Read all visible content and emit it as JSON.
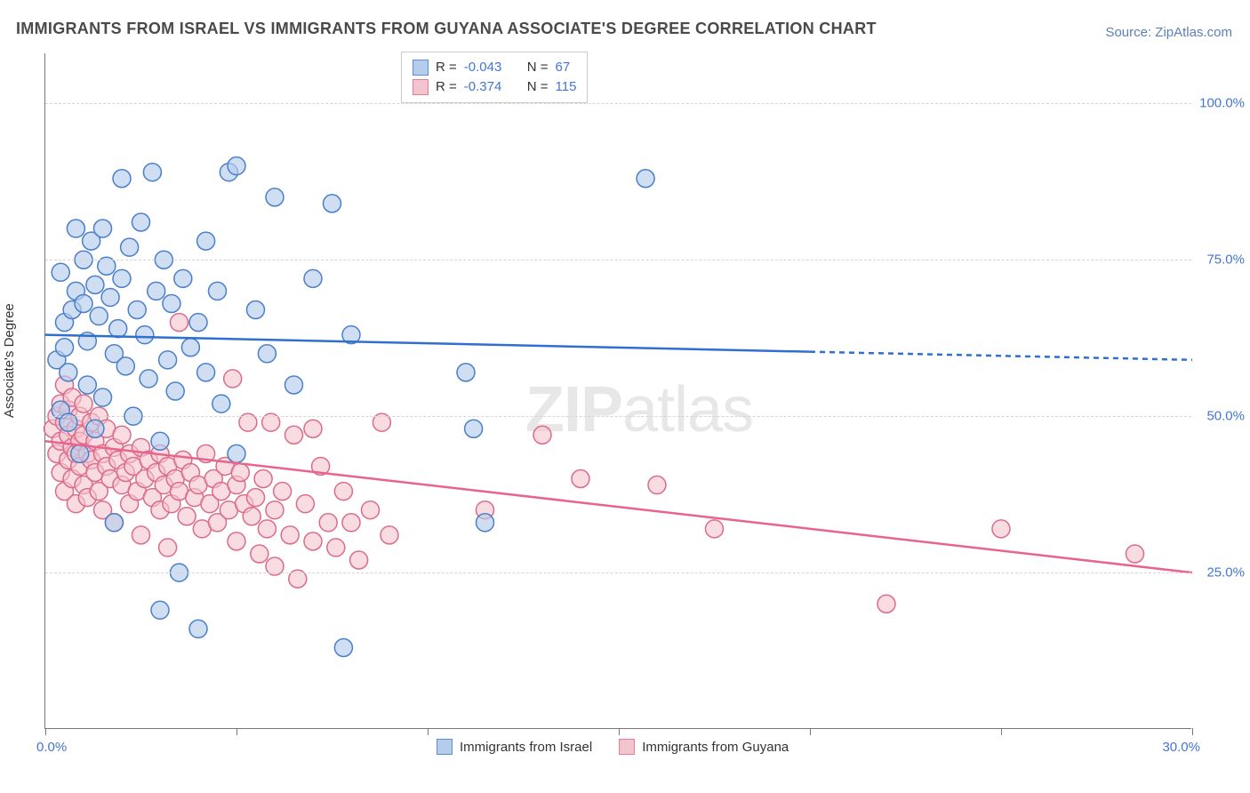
{
  "title": "IMMIGRANTS FROM ISRAEL VS IMMIGRANTS FROM GUYANA ASSOCIATE'S DEGREE CORRELATION CHART",
  "source_label": "Source: ZipAtlas.com",
  "ylabel": "Associate's Degree",
  "watermark_bold": "ZIP",
  "watermark_light": "atlas",
  "xlim": [
    0,
    30
  ],
  "ylim": [
    0,
    108
  ],
  "xlabel_min": "0.0%",
  "xlabel_max": "30.0%",
  "yticks": [
    {
      "value": 25,
      "label": "25.0%"
    },
    {
      "value": 50,
      "label": "50.0%"
    },
    {
      "value": 75,
      "label": "75.0%"
    },
    {
      "value": 100,
      "label": "100.0%"
    }
  ],
  "xtick_positions": [
    0,
    5,
    10,
    15,
    20,
    25,
    30
  ],
  "legend_top": {
    "rows": [
      {
        "swatch_fill": "#b5cdec",
        "swatch_stroke": "#5b8dd4",
        "R_label": "R =",
        "R_value": "-0.043",
        "N_label": "N =",
        "N_value": "67"
      },
      {
        "swatch_fill": "#f4c4ce",
        "swatch_stroke": "#e67a97",
        "R_label": "R =",
        "R_value": "-0.374",
        "N_label": "N =",
        "N_value": "115"
      }
    ]
  },
  "legend_bottom": {
    "items": [
      {
        "swatch_fill": "#b5cdec",
        "swatch_stroke": "#5b8dd4",
        "label": "Immigrants from Israel"
      },
      {
        "swatch_fill": "#f4c4ce",
        "swatch_stroke": "#e67a97",
        "label": "Immigrants from Guyana"
      }
    ]
  },
  "series": {
    "israel": {
      "marker_fill": "#b5cdec",
      "marker_stroke": "#4a7fc9",
      "marker_opacity": 0.65,
      "marker_radius": 10,
      "line_color": "#2f6fd0",
      "line_width": 2.5,
      "trend": {
        "x1": 0,
        "y1": 63,
        "x2_solid": 20,
        "y2_solid": 60.3,
        "x2_dash": 30,
        "y2_dash": 59
      },
      "points": [
        [
          0.3,
          59
        ],
        [
          0.4,
          73
        ],
        [
          0.4,
          51
        ],
        [
          0.5,
          61
        ],
        [
          0.5,
          65
        ],
        [
          0.6,
          57
        ],
        [
          0.6,
          49
        ],
        [
          0.7,
          67
        ],
        [
          0.8,
          80
        ],
        [
          0.8,
          70
        ],
        [
          0.9,
          44
        ],
        [
          1.0,
          75
        ],
        [
          1.0,
          68
        ],
        [
          1.1,
          62
        ],
        [
          1.1,
          55
        ],
        [
          1.2,
          78
        ],
        [
          1.3,
          71
        ],
        [
          1.3,
          48
        ],
        [
          1.4,
          66
        ],
        [
          1.5,
          80
        ],
        [
          1.5,
          53
        ],
        [
          1.6,
          74
        ],
        [
          1.7,
          69
        ],
        [
          1.8,
          60
        ],
        [
          1.8,
          33
        ],
        [
          1.9,
          64
        ],
        [
          2.0,
          88
        ],
        [
          2.0,
          72
        ],
        [
          2.1,
          58
        ],
        [
          2.2,
          77
        ],
        [
          2.3,
          50
        ],
        [
          2.4,
          67
        ],
        [
          2.5,
          81
        ],
        [
          2.6,
          63
        ],
        [
          2.7,
          56
        ],
        [
          2.8,
          89
        ],
        [
          2.9,
          70
        ],
        [
          3.0,
          46
        ],
        [
          3.0,
          19
        ],
        [
          3.1,
          75
        ],
        [
          3.2,
          59
        ],
        [
          3.3,
          68
        ],
        [
          3.4,
          54
        ],
        [
          3.5,
          25
        ],
        [
          3.6,
          72
        ],
        [
          3.8,
          61
        ],
        [
          4.0,
          65
        ],
        [
          4.0,
          16
        ],
        [
          4.2,
          78
        ],
        [
          4.2,
          57
        ],
        [
          4.5,
          70
        ],
        [
          4.6,
          52
        ],
        [
          4.8,
          89
        ],
        [
          5.0,
          44
        ],
        [
          5.0,
          90
        ],
        [
          5.5,
          67
        ],
        [
          5.8,
          60
        ],
        [
          6.0,
          85
        ],
        [
          6.5,
          55
        ],
        [
          7.0,
          72
        ],
        [
          7.5,
          84
        ],
        [
          7.8,
          13
        ],
        [
          8.0,
          63
        ],
        [
          11.0,
          57
        ],
        [
          11.2,
          48
        ],
        [
          11.5,
          33
        ],
        [
          15.7,
          88
        ]
      ]
    },
    "guyana": {
      "marker_fill": "#f4c4ce",
      "marker_stroke": "#dc6b8a",
      "marker_opacity": 0.6,
      "marker_radius": 10,
      "line_color": "#e8648c",
      "line_width": 2.5,
      "trend": {
        "x1": 0,
        "y1": 46,
        "x2_solid": 30,
        "y2_solid": 25
      },
      "points": [
        [
          0.2,
          48
        ],
        [
          0.3,
          50
        ],
        [
          0.3,
          44
        ],
        [
          0.4,
          52
        ],
        [
          0.4,
          46
        ],
        [
          0.4,
          41
        ],
        [
          0.5,
          49
        ],
        [
          0.5,
          38
        ],
        [
          0.5,
          55
        ],
        [
          0.6,
          43
        ],
        [
          0.6,
          47
        ],
        [
          0.6,
          51
        ],
        [
          0.7,
          45
        ],
        [
          0.7,
          40
        ],
        [
          0.7,
          53
        ],
        [
          0.8,
          48
        ],
        [
          0.8,
          36
        ],
        [
          0.8,
          44
        ],
        [
          0.9,
          50
        ],
        [
          0.9,
          42
        ],
        [
          0.9,
          46
        ],
        [
          1.0,
          39
        ],
        [
          1.0,
          47
        ],
        [
          1.0,
          52
        ],
        [
          1.1,
          44
        ],
        [
          1.1,
          37
        ],
        [
          1.2,
          49
        ],
        [
          1.2,
          43
        ],
        [
          1.3,
          41
        ],
        [
          1.3,
          46
        ],
        [
          1.4,
          38
        ],
        [
          1.4,
          50
        ],
        [
          1.5,
          44
        ],
        [
          1.5,
          35
        ],
        [
          1.6,
          42
        ],
        [
          1.6,
          48
        ],
        [
          1.7,
          40
        ],
        [
          1.8,
          45
        ],
        [
          1.8,
          33
        ],
        [
          1.9,
          43
        ],
        [
          2.0,
          39
        ],
        [
          2.0,
          47
        ],
        [
          2.1,
          41
        ],
        [
          2.2,
          36
        ],
        [
          2.2,
          44
        ],
        [
          2.3,
          42
        ],
        [
          2.4,
          38
        ],
        [
          2.5,
          45
        ],
        [
          2.5,
          31
        ],
        [
          2.6,
          40
        ],
        [
          2.7,
          43
        ],
        [
          2.8,
          37
        ],
        [
          2.9,
          41
        ],
        [
          3.0,
          35
        ],
        [
          3.0,
          44
        ],
        [
          3.1,
          39
        ],
        [
          3.2,
          42
        ],
        [
          3.2,
          29
        ],
        [
          3.3,
          36
        ],
        [
          3.4,
          40
        ],
        [
          3.5,
          38
        ],
        [
          3.5,
          65
        ],
        [
          3.6,
          43
        ],
        [
          3.7,
          34
        ],
        [
          3.8,
          41
        ],
        [
          3.9,
          37
        ],
        [
          4.0,
          39
        ],
        [
          4.1,
          32
        ],
        [
          4.2,
          44
        ],
        [
          4.3,
          36
        ],
        [
          4.4,
          40
        ],
        [
          4.5,
          33
        ],
        [
          4.6,
          38
        ],
        [
          4.7,
          42
        ],
        [
          4.8,
          35
        ],
        [
          4.9,
          56
        ],
        [
          5.0,
          39
        ],
        [
          5.0,
          30
        ],
        [
          5.1,
          41
        ],
        [
          5.2,
          36
        ],
        [
          5.3,
          49
        ],
        [
          5.4,
          34
        ],
        [
          5.5,
          37
        ],
        [
          5.6,
          28
        ],
        [
          5.7,
          40
        ],
        [
          5.8,
          32
        ],
        [
          5.9,
          49
        ],
        [
          6.0,
          35
        ],
        [
          6.0,
          26
        ],
        [
          6.2,
          38
        ],
        [
          6.4,
          31
        ],
        [
          6.5,
          47
        ],
        [
          6.6,
          24
        ],
        [
          6.8,
          36
        ],
        [
          7.0,
          48
        ],
        [
          7.0,
          30
        ],
        [
          7.2,
          42
        ],
        [
          7.4,
          33
        ],
        [
          7.6,
          29
        ],
        [
          7.8,
          38
        ],
        [
          8.0,
          33
        ],
        [
          8.2,
          27
        ],
        [
          8.5,
          35
        ],
        [
          8.8,
          49
        ],
        [
          9.0,
          31
        ],
        [
          11.5,
          35
        ],
        [
          13.0,
          47
        ],
        [
          14.0,
          40
        ],
        [
          16.0,
          39
        ],
        [
          17.5,
          32
        ],
        [
          22.0,
          20
        ],
        [
          25.0,
          32
        ],
        [
          28.5,
          28
        ]
      ]
    }
  },
  "colors": {
    "text_gray": "#4a4a4a",
    "link_blue": "#4276d0",
    "grid": "#d5d5d5"
  }
}
